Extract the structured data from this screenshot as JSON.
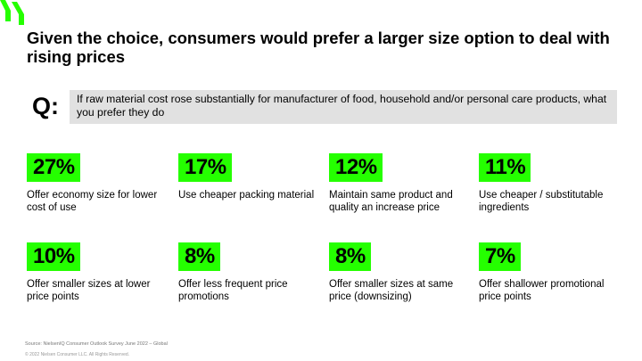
{
  "title": "Given the choice, consumers would prefer a larger size option to deal with rising prices",
  "question": {
    "label": "Q:",
    "text": "If raw material cost rose substantially for manufacturer of food, household and/or personal care products, what you prefer they do"
  },
  "stats": [
    {
      "percent": "27%",
      "label": "Offer economy size for lower cost of use"
    },
    {
      "percent": "17%",
      "label": "Use cheaper packing material"
    },
    {
      "percent": "12%",
      "label": "Maintain same product and quality an increase price"
    },
    {
      "percent": "11%",
      "label": "Use cheaper / substitutable ingredients"
    },
    {
      "percent": "10%",
      "label": "Offer smaller sizes at lower price points"
    },
    {
      "percent": "8%",
      "label": "Offer less frequent price promotions"
    },
    {
      "percent": "8%",
      "label": "Offer smaller sizes at same price (downsizing)"
    },
    {
      "percent": "7%",
      "label": "Offer shallower promotional price points"
    }
  ],
  "footer": {
    "source": "Source: NielsenIQ Consumer Outlook Survey June 2022 – Global",
    "copyright": "© 2022 Nielsen Consumer LLC. All Rights Reserved."
  },
  "colors": {
    "accent": "#25ff00",
    "question_box": "#e1e1e1"
  },
  "icons": {
    "logo": "nielseniq-logo-icon"
  }
}
